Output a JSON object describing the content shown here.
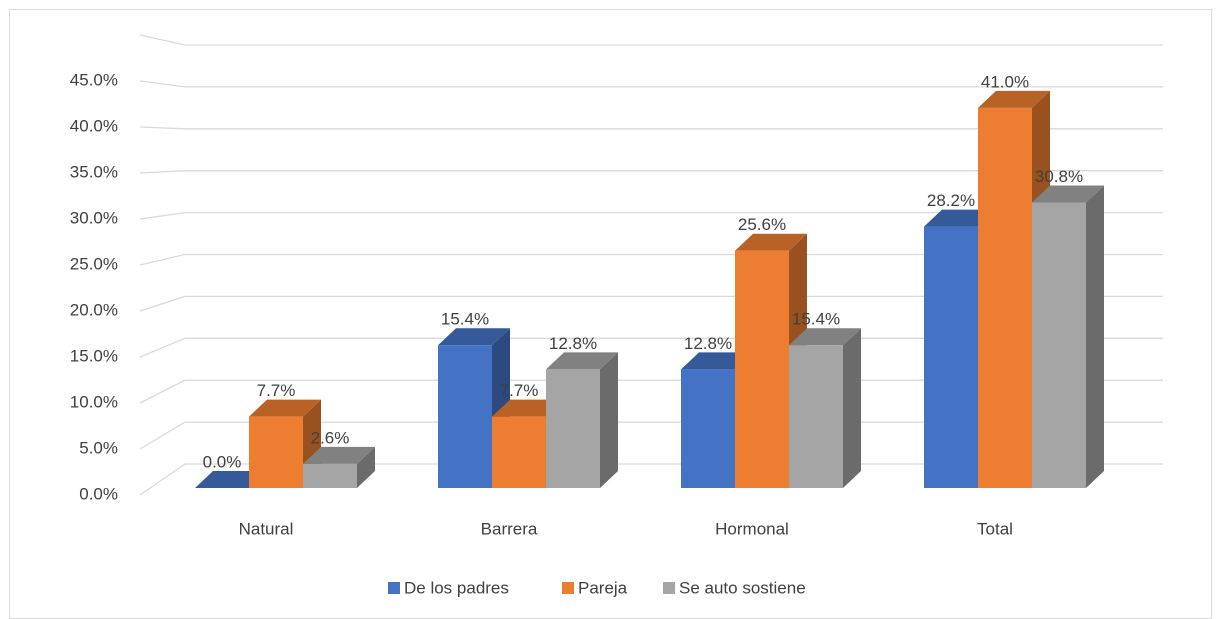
{
  "chart_data": {
    "type": "bar3d",
    "categories": [
      "Natural",
      "Barrera",
      "Hormonal",
      "Total"
    ],
    "series": [
      {
        "name": "De los padres",
        "color": "#4472c4",
        "values": [
          0.0,
          15.4,
          12.8,
          28.2
        ],
        "value_labels": [
          "0.0%",
          "15.4%",
          "12.8%",
          "28.2%"
        ]
      },
      {
        "name": "Pareja",
        "color": "#ed7d31",
        "values": [
          7.7,
          7.7,
          25.6,
          41.0
        ],
        "value_labels": [
          "7.7%",
          "7.7%",
          "25.6%",
          "41.0%"
        ]
      },
      {
        "name": "Se auto sostiene",
        "color": "#a5a5a5",
        "values": [
          2.6,
          12.8,
          15.4,
          30.8
        ],
        "value_labels": [
          "2.6%",
          "12.8%",
          "15.4%",
          "30.8%"
        ]
      }
    ],
    "ylim": [
      0,
      50
    ],
    "yticks": [
      {
        "value": 0,
        "label": "0.0%"
      },
      {
        "value": 5,
        "label": "5.0%"
      },
      {
        "value": 10,
        "label": "10.0%"
      },
      {
        "value": 15,
        "label": "15.0%"
      },
      {
        "value": 20,
        "label": "20.0%"
      },
      {
        "value": 25,
        "label": "25.0%"
      },
      {
        "value": 30,
        "label": "30.0%"
      },
      {
        "value": 35,
        "label": "35.0%"
      },
      {
        "value": 40,
        "label": "40.0%"
      },
      {
        "value": 45,
        "label": "45.0%"
      }
    ],
    "grid": true,
    "legend": "bottom"
  }
}
